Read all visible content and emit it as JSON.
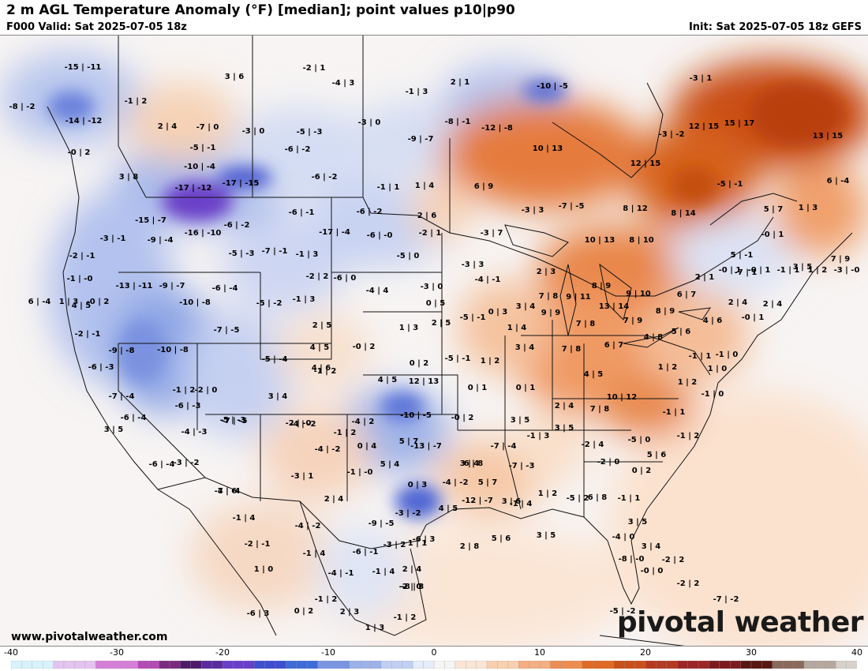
{
  "header": {
    "title": "2 m AGL Temperature Anomaly (°F) [median]; point values p10|p90",
    "valid": "F000 Valid: Sat 2025-07-05 18z",
    "init": "Init: Sat 2025-07-05 18z GEFS"
  },
  "footer": {
    "website": "www.pivotalweather.com",
    "logo": "pivotal weather"
  },
  "colorbar": {
    "ticks": [
      "-40",
      "-30",
      "-20",
      "-10",
      "0",
      "10",
      "20",
      "30",
      "40"
    ],
    "min": -40,
    "max": 40
  },
  "colors": {
    "cold_extreme": "#6a2fc0",
    "cold_strong": "#3f5fd0",
    "cold_mid": "#8da6e6",
    "cold_light": "#d7e0f5",
    "neutral": "#f7f5f4",
    "warm_light": "#fbdcc2",
    "warm_mid": "#f2a070",
    "warm_strong": "#d9621a",
    "warm_extreme": "#b8400e"
  },
  "point_values": [
    "-15|-11",
    "3|6",
    "-2|1",
    "-4|3",
    "2|1",
    "-1|3",
    "-10|-5",
    "-3|1",
    "-8|-2",
    "-1|2",
    "-14|-12",
    "2|4",
    "-7|0",
    "-3|0",
    "-5|-3",
    "-3|0",
    "-8|-1",
    "-12|-8",
    "12|15",
    "15|17",
    "-0|2",
    "-5|-1",
    "-6|-2",
    "-9|-7",
    "10|13",
    "-3|-2",
    "13|15",
    "-10|-4",
    "-6|-2",
    "12|15",
    "-5|-1",
    "6|-4",
    "3|8",
    "-17|-12",
    "-17|-15",
    "-1|1",
    "1|4",
    "6|9",
    "-6|-1",
    "-6|-2",
    "2|6",
    "-3|3",
    "-7|-5",
    "8|12",
    "8|14",
    "5|7",
    "1|3",
    "-15|-7",
    "-16|-10",
    "-6|-2",
    "-17|-4",
    "-6|-0",
    "-2|1",
    "-3|7",
    "10|13",
    "8|10",
    "-0|1",
    "-3|-1",
    "-9|-4",
    "-5|-3",
    "-7|-1",
    "-5|0",
    "-3|3",
    "5|-1",
    "-2|-1",
    "-1|3",
    "-2|2",
    "-6|0",
    "-1|-0",
    "-13|-11",
    "-9|-7",
    "-6|-4",
    "-4|4",
    "-3|0",
    "-4|-1",
    "2|3",
    "8|9",
    "9|10",
    "6|7",
    "2|1",
    "-7|1",
    "3|5",
    "7|9",
    "4|5",
    "-10|-8",
    "-5|-2",
    "-1|3",
    "0|5",
    "7|8",
    "9|11",
    "13|14",
    "2|4",
    "2|4",
    "-2|-1",
    "-7|-5",
    "2|5",
    "1|3",
    "2|5",
    "-5|-1",
    "0|3",
    "3|4",
    "9|9",
    "7|8",
    "7|9",
    "8|9",
    "4|6",
    "-0|1",
    "-9|-8",
    "-10|-8",
    "4|5",
    "-0|2",
    "1|4",
    "5|6",
    "4|8",
    "-1|1",
    "-1|0",
    "-6|-3",
    "-5|-4",
    "-1|2",
    "0|2",
    "-5|-1",
    "1|2",
    "3|4",
    "7|8",
    "6|7",
    "1|2",
    "1|0",
    "-7|-4",
    "-1|2",
    "-2|0",
    "3|4",
    "4|6",
    "4|5",
    "12|13",
    "0|1",
    "-6|-3",
    "-7|-5",
    "-4|-2",
    "0|1",
    "2|4",
    "4|5",
    "1|2",
    "-1|0",
    "-6|-4",
    "-5|-3",
    "-2|-0",
    "-4|2",
    "-10|-5",
    "-0|2",
    "3|5",
    "10|12",
    "7|8",
    "-1|1",
    "3|5",
    "-4|-3",
    "-1|2",
    "5|7",
    "-1|3",
    "-2|4",
    "-1|2",
    "-6|-4",
    "-3|-2",
    "-4|-2",
    "0|4",
    "-13|-7",
    "3|4",
    "3|5",
    "-5|0",
    "5|6",
    "-2|0",
    "4|6",
    "-3|1",
    "-1|-0",
    "5|4",
    "6|8",
    "-7|-4",
    "-7|-3",
    "0|2",
    "-7|-4",
    "2|4",
    "0|3",
    "-4|-2",
    "5|7",
    "-1|4",
    "1|2",
    "-1|1",
    "-3|-2",
    "4|5",
    "-12|-7",
    "3|6",
    "6|8",
    "-5|2",
    "-1|4",
    "-4|-2",
    "-9|-5",
    "-6|3",
    "2|8",
    "5|6",
    "3|5",
    "3|5",
    "-4|0",
    "-2|-1",
    "-1|4",
    "-6|-1",
    "-3|2",
    "1|1",
    "2|4",
    "3|4",
    "-2|2",
    "1|0",
    "-4|-1",
    "-1|4",
    "-2|0",
    "-2|2",
    "-8|-0",
    "-0|0",
    "-1|2",
    "-7|-2",
    "-5|-2",
    "-6|3",
    "0|2",
    "2|3",
    "-1|2",
    "1|3",
    "-8|3",
    "-0|1",
    "-0|1",
    "-1|1",
    "1|2",
    "-3|-0",
    "6|-4",
    "1|3",
    "-0|2"
  ]
}
